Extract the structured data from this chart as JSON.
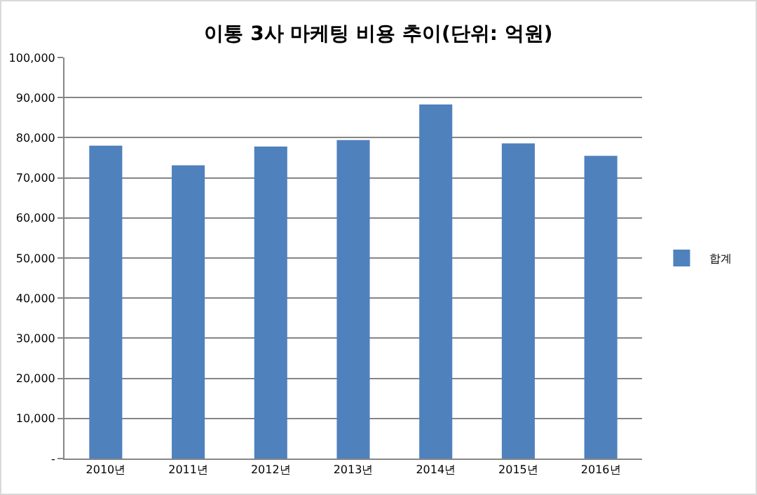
{
  "chart_data": {
    "type": "bar",
    "title": "이통 3사 마케팅 비용 추이(단위: 억원)",
    "categories": [
      "2010년",
      "2011년",
      "2012년",
      "2013년",
      "2014년",
      "2015년",
      "2016년"
    ],
    "series": [
      {
        "name": "합계",
        "color": "#4f81bd",
        "values": [
          78000,
          73100,
          77800,
          79400,
          88300,
          78600,
          75500
        ]
      }
    ],
    "ylim": [
      0,
      100000
    ],
    "yticks": [
      {
        "value": 0,
        "label": "-"
      },
      {
        "value": 10000,
        "label": "10,000"
      },
      {
        "value": 20000,
        "label": "20,000"
      },
      {
        "value": 30000,
        "label": "30,000"
      },
      {
        "value": 40000,
        "label": "40,000"
      },
      {
        "value": 50000,
        "label": "50,000"
      },
      {
        "value": 60000,
        "label": "60,000"
      },
      {
        "value": 70000,
        "label": "70,000"
      },
      {
        "value": 80000,
        "label": "80,000"
      },
      {
        "value": 90000,
        "label": "90,000"
      },
      {
        "value": 100000,
        "label": "100,000"
      }
    ],
    "grid": "y",
    "legend": "right"
  }
}
